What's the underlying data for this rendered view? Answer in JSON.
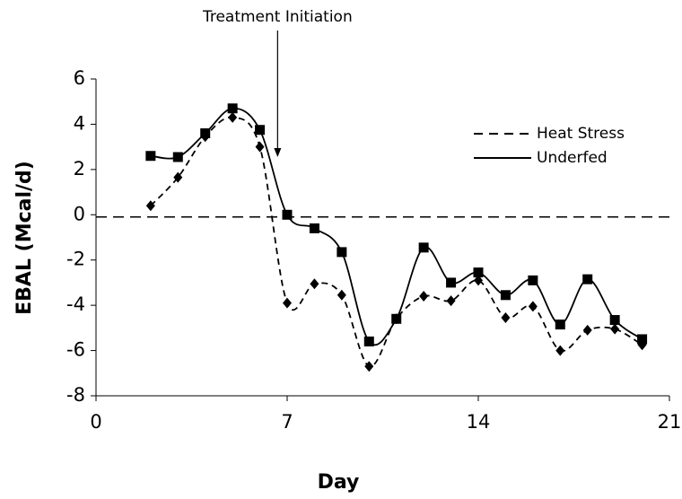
{
  "chart_data": {
    "type": "line",
    "xlabel": "Day",
    "ylabel": "EBAL (Mcal/d)",
    "x": [
      2,
      3,
      4,
      5,
      6,
      7,
      8,
      9,
      10,
      11,
      12,
      13,
      14,
      15,
      16,
      17,
      18,
      19,
      20
    ],
    "series": [
      {
        "name": "Heat Stress",
        "color": "#000000",
        "style": "dashed",
        "marker": "diamond",
        "values": [
          0.4,
          1.65,
          3.45,
          4.3,
          3.0,
          -3.9,
          -3.05,
          -3.55,
          -6.7,
          -4.6,
          -3.6,
          -3.8,
          -2.9,
          -4.55,
          -4.05,
          -6.0,
          -5.1,
          -5.05,
          -5.75
        ]
      },
      {
        "name": "Underfed",
        "color": "#000000",
        "style": "solid",
        "marker": "square",
        "values": [
          2.6,
          2.55,
          3.6,
          4.7,
          3.75,
          0.0,
          -0.6,
          -1.65,
          -5.6,
          -4.6,
          -1.45,
          -3.0,
          -2.55,
          -3.55,
          -2.9,
          -4.85,
          -2.85,
          -4.65,
          -5.5
        ]
      }
    ],
    "xlim": [
      0,
      21
    ],
    "xticks": [
      0,
      7,
      14,
      21
    ],
    "ylim": [
      -8,
      6
    ],
    "yticks": [
      -8,
      -6,
      -4,
      -2,
      0,
      2,
      4,
      6
    ],
    "reference_line": -0.1,
    "annotation": {
      "text": "Treatment Initiation",
      "x": 6.65,
      "y": 2.55
    },
    "legend": "upper right"
  }
}
